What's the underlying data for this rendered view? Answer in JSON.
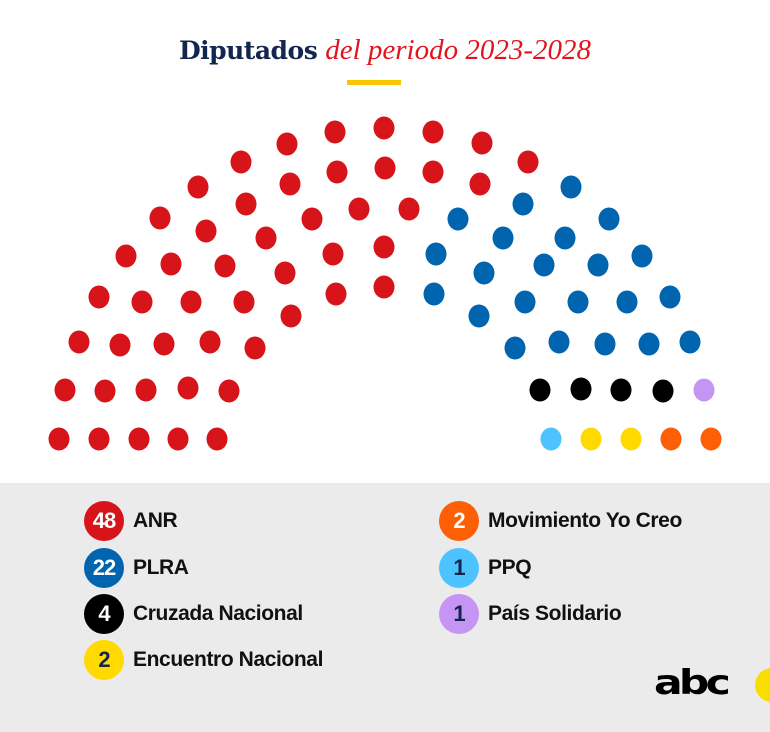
{
  "title": {
    "bold": "Diputados",
    "italic": "del periodo 2023-2028"
  },
  "parties": [
    {
      "name": "ANR",
      "seats": 48,
      "color": "#d7141a",
      "text_color": "#ffffff"
    },
    {
      "name": "PLRA",
      "seats": 22,
      "color": "#0064ae",
      "text_color": "#ffffff"
    },
    {
      "name": "Cruzada Nacional",
      "seats": 4,
      "color": "#000000",
      "text_color": "#ffffff"
    },
    {
      "name": "Encuentro Nacional",
      "seats": 2,
      "color": "#ffd900",
      "text_color": "#13264f"
    },
    {
      "name": "Movimiento Yo Creo",
      "seats": 2,
      "color": "#fc5f05",
      "text_color": "#ffffff"
    },
    {
      "name": "PPQ",
      "seats": 1,
      "color": "#4cc3ff",
      "text_color": "#13264f"
    },
    {
      "name": "País Solidario",
      "seats": 1,
      "color": "#c695f3",
      "text_color": "#13264f"
    }
  ],
  "total_seats": 80,
  "logo": "abc",
  "colors": {
    "title": "#13264f",
    "accent": "#e2141d",
    "rule": "#f7c600",
    "panel": "#ecebeb"
  }
}
